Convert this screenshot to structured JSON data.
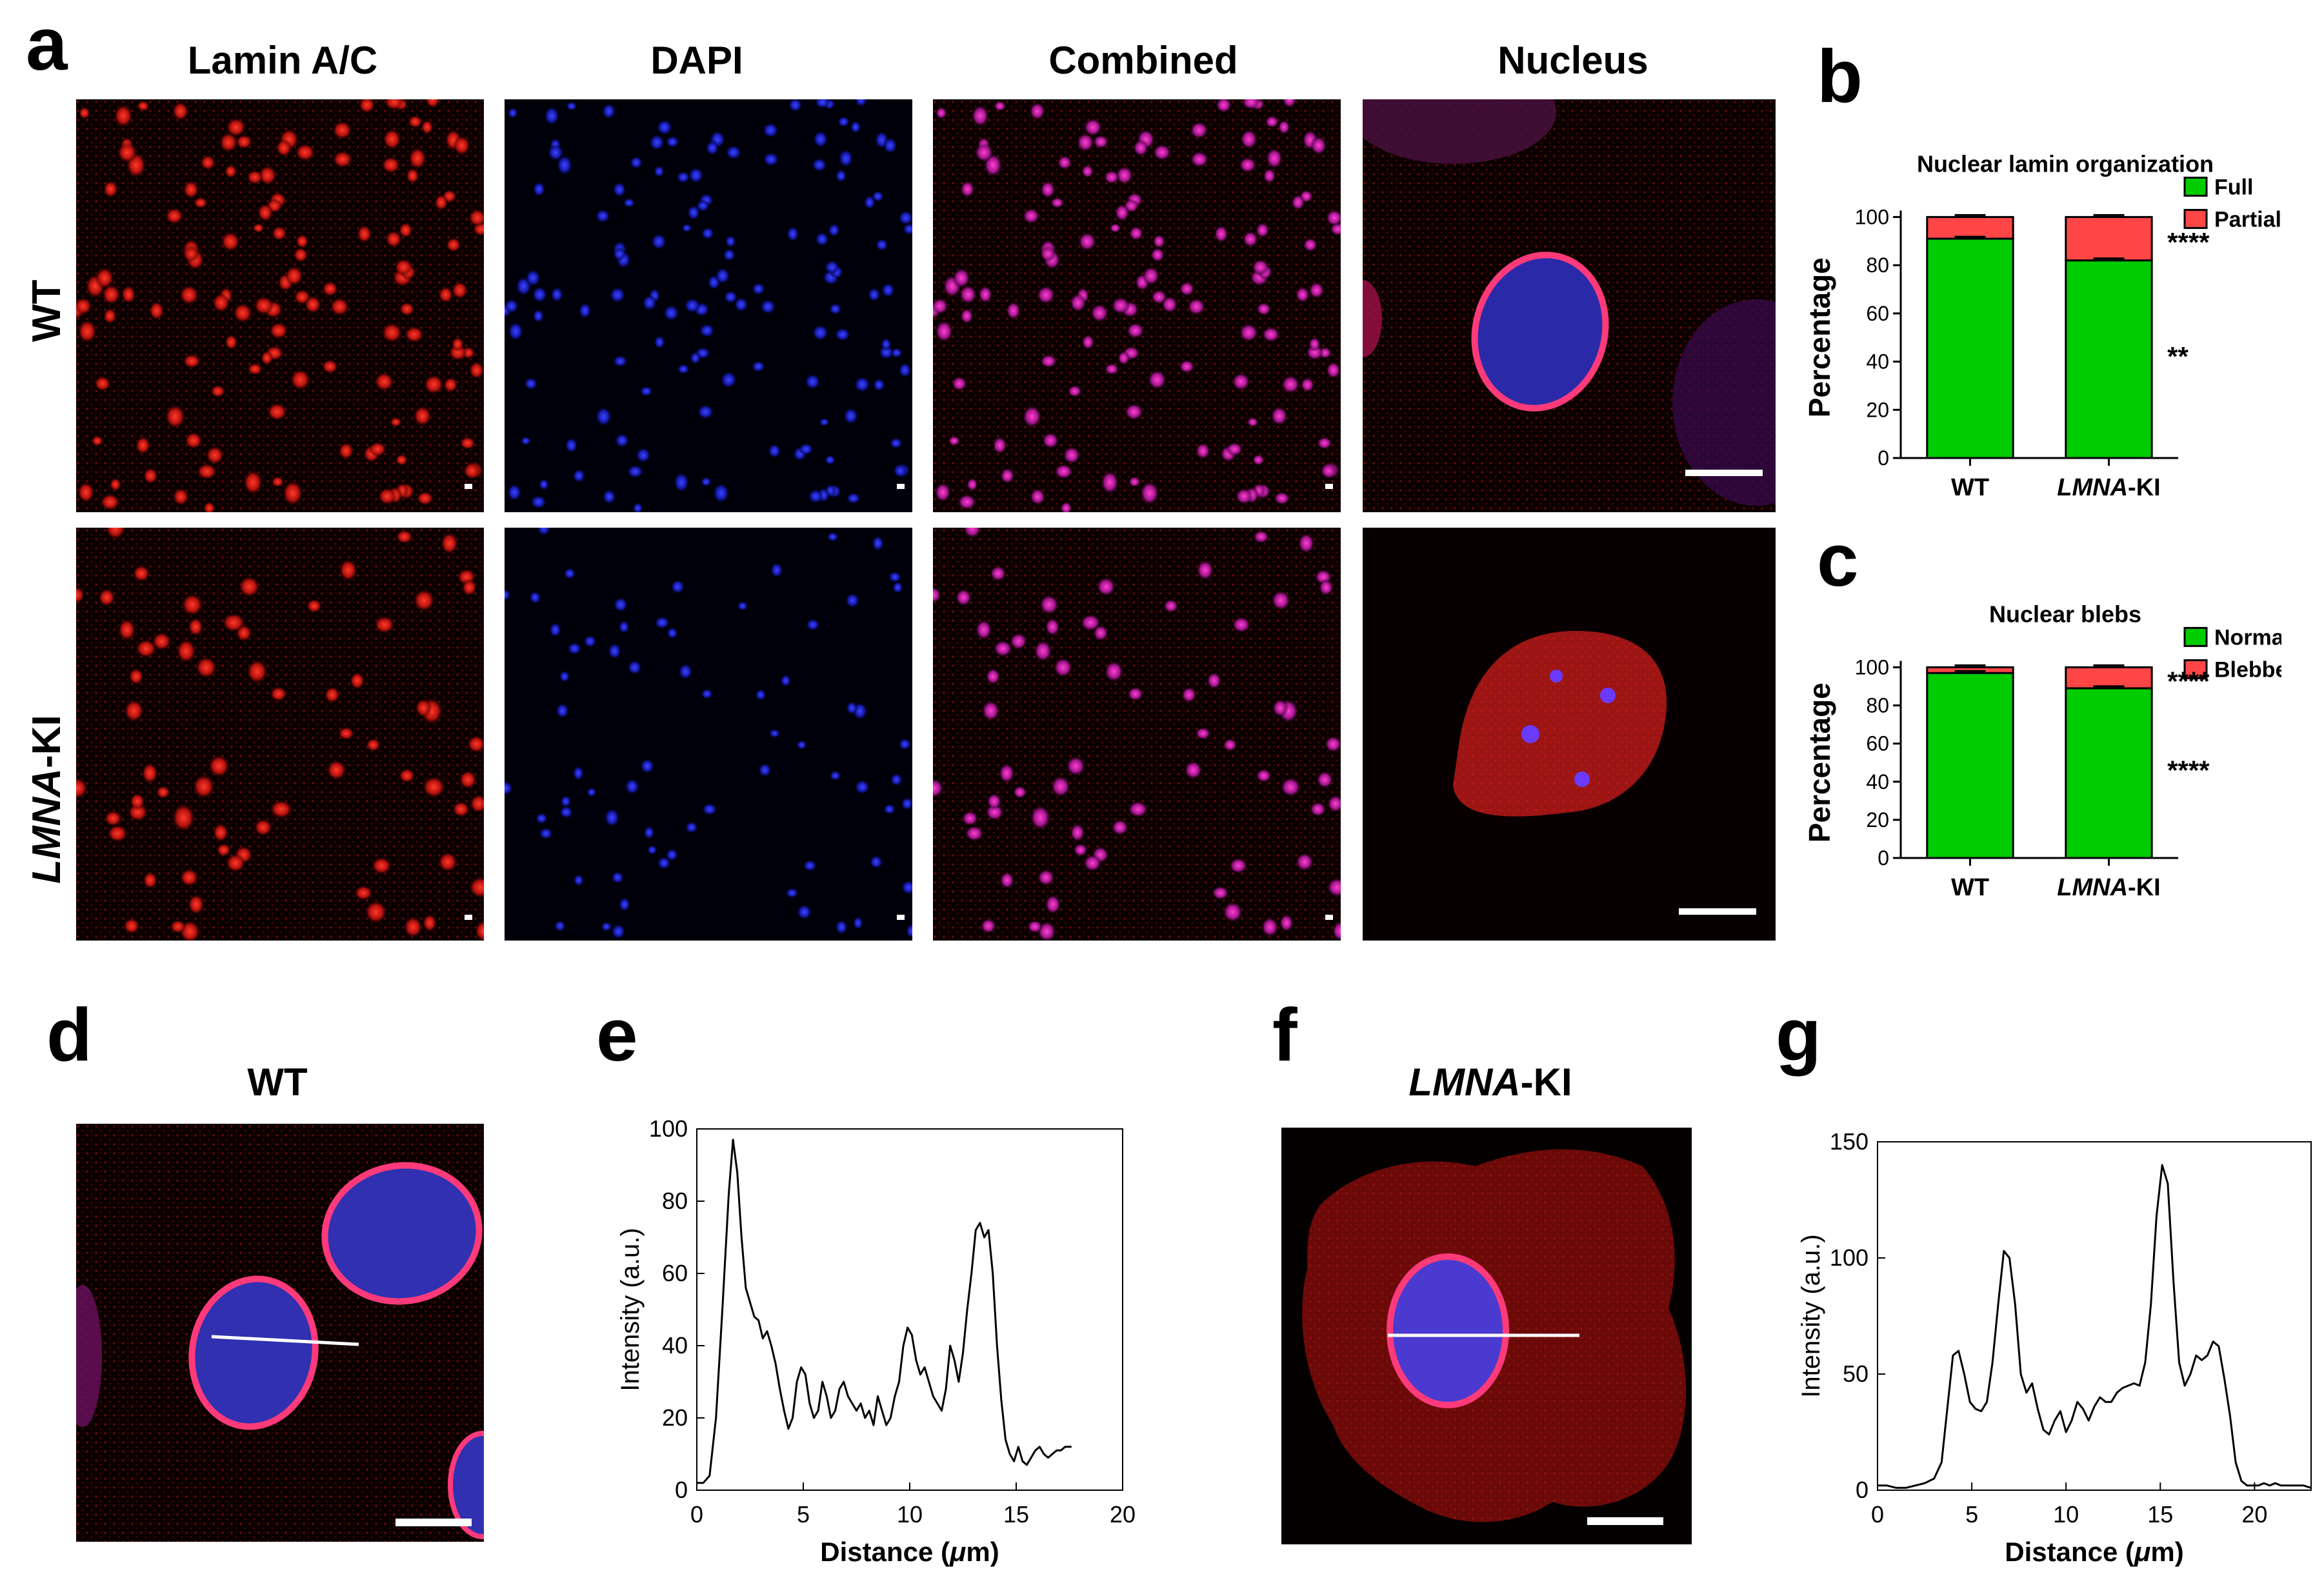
{
  "figure": {
    "panel_letters": {
      "a": "a",
      "b": "b",
      "c": "c",
      "d": "d",
      "e": "e",
      "f": "f",
      "g": "g"
    },
    "columns": [
      "Lamin A/C",
      "DAPI",
      "Combined",
      "Nucleus"
    ],
    "rows": {
      "wt": "WT",
      "ki_italic": "LMNA",
      "ki_rest": "-KI"
    },
    "panel_d_title": "WT",
    "panel_f_title_italic": "LMNA",
    "panel_f_title_rest": "-KI",
    "colors": {
      "lamin": "#e8201e",
      "dapi": "#1a2cff",
      "full_normal": "#00cc00",
      "partial_blebbed": "#ff4646"
    }
  },
  "chart_data": [
    {
      "id": "b",
      "type": "bar",
      "stacked": true,
      "title": "Nuclear lamin organization",
      "ylabel": "Percentage",
      "xlabel": "",
      "ylim": [
        0,
        100
      ],
      "yticks": [
        0,
        20,
        40,
        60,
        80,
        100
      ],
      "categories": [
        "WT",
        "LMNA-KI"
      ],
      "category_parts": [
        [
          "WT",
          ""
        ],
        [
          "LMNA",
          "-KI"
        ]
      ],
      "series": [
        {
          "name": "Full",
          "color": "#00cc00",
          "values": [
            91,
            82
          ]
        },
        {
          "name": "Partial",
          "color": "#ff4646",
          "values": [
            9,
            18
          ]
        }
      ],
      "annotations": [
        "****",
        "**"
      ],
      "legend_position": "top-right"
    },
    {
      "id": "c",
      "type": "bar",
      "stacked": true,
      "title": "Nuclear blebs",
      "ylabel": "Percentage",
      "xlabel": "",
      "ylim": [
        0,
        100
      ],
      "yticks": [
        0,
        20,
        40,
        60,
        80,
        100
      ],
      "categories": [
        "WT",
        "LMNA-KI"
      ],
      "category_parts": [
        [
          "WT",
          ""
        ],
        [
          "LMNA",
          "-KI"
        ]
      ],
      "series": [
        {
          "name": "Normal",
          "color": "#00cc00",
          "values": [
            97,
            89
          ]
        },
        {
          "name": "Blebbed",
          "color": "#ff4646",
          "values": [
            3,
            11
          ]
        }
      ],
      "annotations": [
        "****",
        "****"
      ],
      "legend_position": "top-right"
    },
    {
      "id": "e",
      "type": "line",
      "title": "",
      "xlabel": "Distance (μm)",
      "xlabel_parts": [
        "Distance (",
        "μ",
        "m)"
      ],
      "ylabel": "Intensity (a.u.)",
      "xlim": [
        0,
        20
      ],
      "ylim": [
        0,
        100
      ],
      "xticks": [
        0,
        5,
        10,
        15,
        20
      ],
      "yticks": [
        0,
        20,
        40,
        60,
        80,
        100
      ],
      "x": [
        0,
        0.3,
        0.6,
        0.9,
        1.2,
        1.5,
        1.7,
        1.9,
        2.1,
        2.3,
        2.5,
        2.7,
        2.9,
        3.1,
        3.3,
        3.5,
        3.7,
        3.9,
        4.1,
        4.3,
        4.5,
        4.7,
        4.9,
        5.1,
        5.3,
        5.5,
        5.7,
        5.9,
        6.1,
        6.3,
        6.5,
        6.7,
        6.9,
        7.1,
        7.3,
        7.5,
        7.7,
        7.9,
        8.1,
        8.3,
        8.5,
        8.7,
        8.9,
        9.1,
        9.3,
        9.5,
        9.7,
        9.9,
        10.1,
        10.3,
        10.5,
        10.7,
        10.9,
        11.1,
        11.3,
        11.5,
        11.7,
        11.9,
        12.1,
        12.3,
        12.5,
        12.7,
        12.9,
        13.1,
        13.3,
        13.5,
        13.7,
        13.9,
        14.1,
        14.3,
        14.5,
        14.7,
        14.9,
        15.1,
        15.3,
        15.5,
        15.7,
        15.9,
        16.1,
        16.3,
        16.5,
        16.7,
        16.9,
        17.1,
        17.3,
        17.6
      ],
      "y": [
        2,
        2,
        4,
        20,
        50,
        82,
        97,
        88,
        70,
        56,
        52,
        48,
        47,
        42,
        44,
        40,
        35,
        28,
        22,
        17,
        20,
        30,
        34,
        32,
        24,
        20,
        22,
        30,
        26,
        20,
        22,
        28,
        30,
        26,
        24,
        22,
        24,
        20,
        22,
        18,
        26,
        22,
        18,
        20,
        26,
        30,
        40,
        45,
        43,
        36,
        32,
        34,
        30,
        26,
        24,
        22,
        28,
        40,
        36,
        30,
        38,
        50,
        60,
        72,
        74,
        70,
        72,
        60,
        40,
        25,
        14,
        10,
        8,
        12,
        8,
        7,
        9,
        11,
        12,
        10,
        9,
        10,
        11,
        11,
        12,
        12
      ],
      "legend_position": "none"
    },
    {
      "id": "g",
      "type": "line",
      "title": "",
      "xlabel": "Distance (μm)",
      "xlabel_parts": [
        "Distance (",
        "μ",
        "m)"
      ],
      "ylabel": "Intensity (a.u.)",
      "xlim": [
        0,
        23
      ],
      "ylim": [
        0,
        150
      ],
      "xticks": [
        0,
        5,
        10,
        15,
        20
      ],
      "yticks": [
        0,
        50,
        100,
        150
      ],
      "x": [
        0,
        0.5,
        1,
        1.5,
        2,
        2.5,
        3,
        3.4,
        3.7,
        4,
        4.3,
        4.6,
        4.9,
        5.2,
        5.5,
        5.8,
        6.1,
        6.4,
        6.7,
        7,
        7.3,
        7.6,
        7.9,
        8.2,
        8.5,
        8.8,
        9.1,
        9.4,
        9.7,
        10,
        10.3,
        10.6,
        10.9,
        11.2,
        11.5,
        11.8,
        12.1,
        12.4,
        12.7,
        13,
        13.3,
        13.6,
        13.9,
        14.2,
        14.5,
        14.8,
        15.1,
        15.4,
        15.7,
        16,
        16.3,
        16.6,
        16.9,
        17.2,
        17.5,
        17.8,
        18.1,
        18.4,
        18.7,
        19,
        19.3,
        19.6,
        19.9,
        20.2,
        20.5,
        20.8,
        21.1,
        21.4,
        21.7,
        22,
        22.3,
        22.6,
        23
      ],
      "y": [
        2,
        2,
        1,
        1,
        2,
        3,
        5,
        12,
        35,
        58,
        60,
        50,
        38,
        35,
        34,
        38,
        55,
        80,
        103,
        100,
        80,
        50,
        42,
        46,
        35,
        26,
        24,
        30,
        34,
        25,
        30,
        38,
        35,
        30,
        36,
        40,
        38,
        38,
        42,
        44,
        45,
        46,
        45,
        55,
        80,
        118,
        140,
        132,
        90,
        55,
        45,
        50,
        58,
        56,
        58,
        64,
        62,
        48,
        32,
        12,
        4,
        2,
        2,
        2,
        3,
        2,
        3,
        2,
        2,
        2,
        2,
        2,
        1
      ]
    }
  ]
}
